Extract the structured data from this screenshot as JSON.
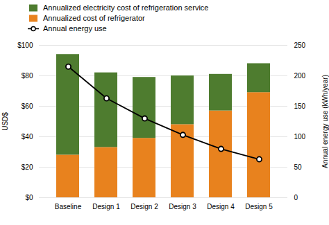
{
  "chart_data": {
    "type": "bar",
    "stacked": true,
    "grid": true,
    "legend": "upper left",
    "categories": [
      "Baseline",
      "Design 1",
      "Design 2",
      "Design 3",
      "Design 4",
      "Design 5"
    ],
    "series": [
      {
        "name": "Annualized cost of refrigerator",
        "color": "#E8821E",
        "values": [
          28,
          33,
          39,
          48,
          57,
          69
        ]
      },
      {
        "name": "Annualized electricity cost of refrigeration service",
        "color": "#4E7C2F",
        "values": [
          66,
          49,
          40,
          32,
          24,
          19
        ]
      },
      {
        "name": "Annual energy use",
        "type": "line",
        "axis": "y2",
        "color": "#000000",
        "marker": "circle",
        "values": [
          215,
          163,
          130,
          103,
          80,
          63
        ]
      }
    ],
    "ylabel": "USD$",
    "y2label": "Annual energy use (kWh/year)",
    "ylim": [
      0,
      100
    ],
    "yticks": [
      {
        "value": 0,
        "label": "$0"
      },
      {
        "value": 20,
        "label": "$20"
      },
      {
        "value": 40,
        "label": "$40"
      },
      {
        "value": 60,
        "label": "$60"
      },
      {
        "value": 80,
        "label": "$80"
      },
      {
        "value": 100,
        "label": "$100"
      }
    ],
    "y2lim": [
      0,
      250
    ],
    "y2ticks": [
      0,
      50,
      100,
      150,
      200,
      250
    ]
  }
}
